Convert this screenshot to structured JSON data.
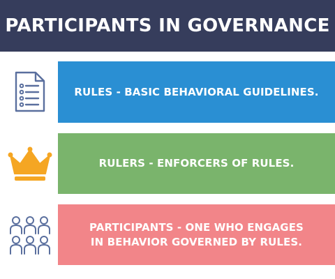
{
  "title": "PARTICIPANTS IN GOVERNANCE",
  "rows": [
    {
      "icon": "document-list-icon",
      "text": "RULES - BASIC BEHAVIORAL GUIDELINES.",
      "color": "#2a8fd3"
    },
    {
      "icon": "crown-icon",
      "text": "RULERS - ENFORCERS OF RULES.",
      "color": "#7ab46c"
    },
    {
      "icon": "people-group-icon",
      "text": "PARTICIPANTS - ONE WHO ENGAGES\nIN BEHAVIOR GOVERNED BY RULES.",
      "color": "#f28589"
    }
  ],
  "colors": {
    "header": "#363d5c",
    "icon_outline": "#5a6f9e",
    "crown": "#f5a623"
  }
}
